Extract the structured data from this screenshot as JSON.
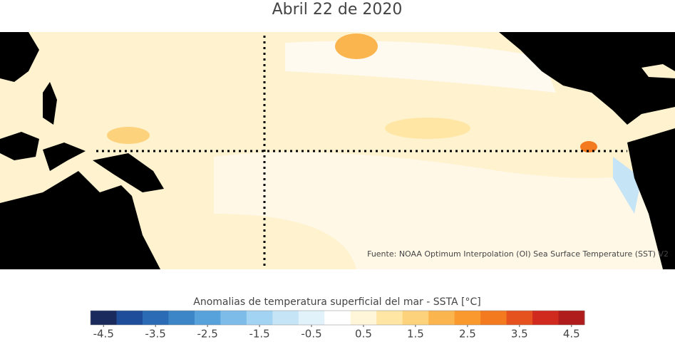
{
  "title": "Abril 22 de 2020",
  "source": "Fuente: NOAA Optimum Interpolation (OI) Sea Surface Temperature (SST) V2",
  "colorbar": {
    "label": "Anomalias de temperatura superficial del mar - SSTA  [°C]",
    "lim": [
      -4.75,
      4.75
    ],
    "ticks": [
      -4.5,
      -3.5,
      -2.5,
      -1.5,
      -0.5,
      0.5,
      1.5,
      2.5,
      3.5,
      4.5
    ],
    "colors": [
      "#1b2a5c",
      "#1f4d9a",
      "#2b6ab4",
      "#3c86c8",
      "#58a2dc",
      "#7dbce9",
      "#a2d3f3",
      "#c5e4f6",
      "#e2f2fa",
      "#ffffff",
      "#fff5d8",
      "#ffe6a4",
      "#fdd27c",
      "#fbb54f",
      "#f9992e",
      "#f47a20",
      "#e6521f",
      "#d02a1f",
      "#b01b1b"
    ]
  }
}
